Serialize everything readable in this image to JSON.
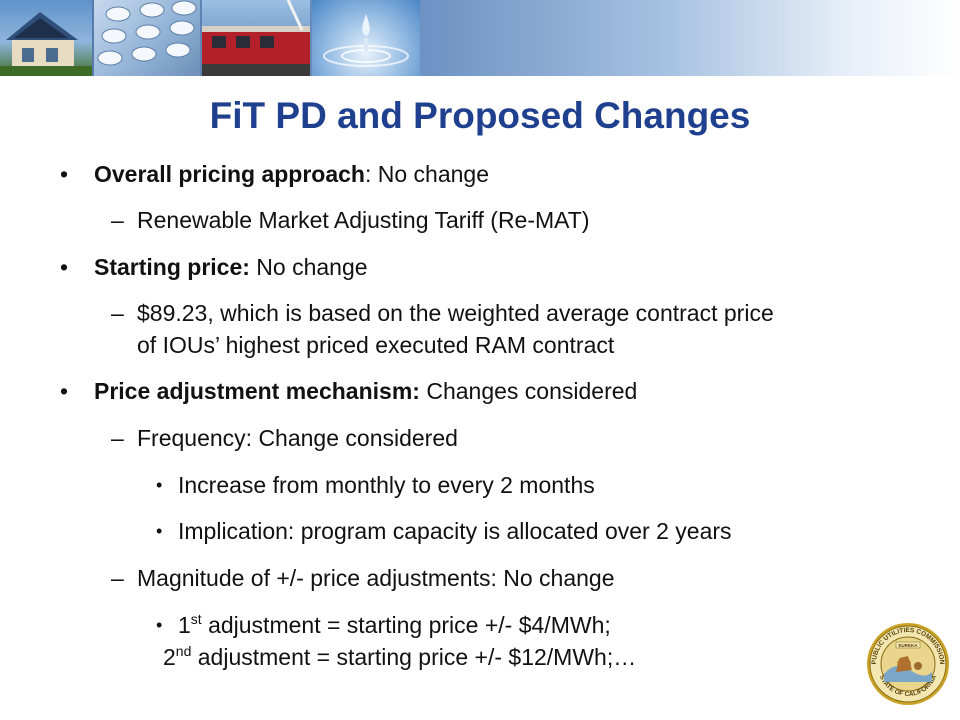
{
  "title": "FiT PD and Proposed Changes",
  "bullets": [
    {
      "bold": "Overall pricing approach",
      "text": ": No change"
    },
    {
      "text": "Renewable Market Adjusting Tariff (Re-MAT)"
    },
    {
      "bold": "Starting price:",
      "text": " No change"
    },
    {
      "text": "$89.23, which is based on the weighted average contract price",
      "text2": "of IOUs’ highest priced executed RAM contract"
    },
    {
      "bold": "Price adjustment mechanism:",
      "text": " Changes considered"
    },
    {
      "text": "Frequency: Change considered"
    },
    {
      "text": "Increase from monthly to every 2 months"
    },
    {
      "text": "Implication: program capacity is allocated over 2 years"
    },
    {
      "text": "Magnitude of +/- price adjustments: No change"
    },
    {
      "num1": "1",
      "sup1": "st",
      "rest1": " adjustment = starting price +/- $4/MWh;",
      "num2": "2",
      "sup2": "nd",
      "rest2": " adjustment = starting price +/- $12/MWh;…"
    }
  ],
  "markers": {
    "bullet": "•",
    "dash": "–"
  },
  "seal": {
    "top_text": "PUBLIC UTILITIES COMMISSION",
    "bottom_text": "STATE OF CALIFORNIA",
    "motto": "EUREKA"
  },
  "colors": {
    "title": "#1f3f8f",
    "seal_ring": "#c9a227"
  }
}
